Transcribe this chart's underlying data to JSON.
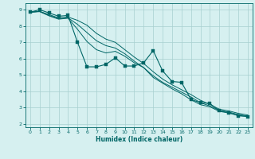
{
  "xlabel": "Humidex (Indice chaleur)",
  "bg_color": "#d6f0f0",
  "grid_color": "#a8d0d0",
  "line_color": "#006666",
  "xlim": [
    -0.5,
    23.5
  ],
  "ylim": [
    1.8,
    9.4
  ],
  "xticks": [
    0,
    1,
    2,
    3,
    4,
    5,
    6,
    7,
    8,
    9,
    10,
    11,
    12,
    13,
    14,
    15,
    16,
    17,
    18,
    19,
    20,
    21,
    22,
    23
  ],
  "yticks": [
    2,
    3,
    4,
    5,
    6,
    7,
    8,
    9
  ],
  "series": [
    {
      "x": [
        0,
        1,
        2,
        3,
        4,
        5,
        6,
        7,
        8,
        9,
        10,
        11,
        12,
        13,
        14,
        15,
        16,
        17,
        18,
        19,
        20,
        21,
        22,
        23
      ],
      "y": [
        8.85,
        9.0,
        8.8,
        8.6,
        8.65,
        7.0,
        5.5,
        5.5,
        5.65,
        6.05,
        5.55,
        5.55,
        5.75,
        6.5,
        5.25,
        4.6,
        4.55,
        3.5,
        3.3,
        3.25,
        2.8,
        2.7,
        2.5,
        2.45
      ],
      "has_marker": true
    },
    {
      "x": [
        0,
        1,
        2,
        3,
        4,
        5,
        6,
        7,
        8,
        9,
        10,
        11,
        12,
        13,
        14,
        15,
        16,
        17,
        18,
        19,
        20,
        21,
        22,
        23
      ],
      "y": [
        8.85,
        8.9,
        8.7,
        8.5,
        8.55,
        8.35,
        8.05,
        7.55,
        7.2,
        7.0,
        6.55,
        6.1,
        5.7,
        5.2,
        4.75,
        4.4,
        4.1,
        3.8,
        3.45,
        3.2,
        2.9,
        2.8,
        2.65,
        2.55
      ],
      "has_marker": false
    },
    {
      "x": [
        0,
        1,
        2,
        3,
        4,
        5,
        6,
        7,
        8,
        9,
        10,
        11,
        12,
        13,
        14,
        15,
        16,
        17,
        18,
        19,
        20,
        21,
        22,
        23
      ],
      "y": [
        8.85,
        8.9,
        8.65,
        8.45,
        8.5,
        8.1,
        7.6,
        7.1,
        6.8,
        6.65,
        6.3,
        5.85,
        5.45,
        4.95,
        4.55,
        4.25,
        3.95,
        3.65,
        3.3,
        3.1,
        2.83,
        2.73,
        2.58,
        2.48
      ],
      "has_marker": false
    },
    {
      "x": [
        0,
        1,
        2,
        3,
        4,
        5,
        6,
        7,
        8,
        9,
        10,
        11,
        12,
        13,
        14,
        15,
        16,
        17,
        18,
        19,
        20,
        21,
        22,
        23
      ],
      "y": [
        8.85,
        8.88,
        8.62,
        8.42,
        8.48,
        7.8,
        7.05,
        6.55,
        6.35,
        6.45,
        6.15,
        5.75,
        5.45,
        4.85,
        4.5,
        4.15,
        3.85,
        3.48,
        3.18,
        3.05,
        2.77,
        2.67,
        2.52,
        2.48
      ],
      "has_marker": false
    }
  ]
}
